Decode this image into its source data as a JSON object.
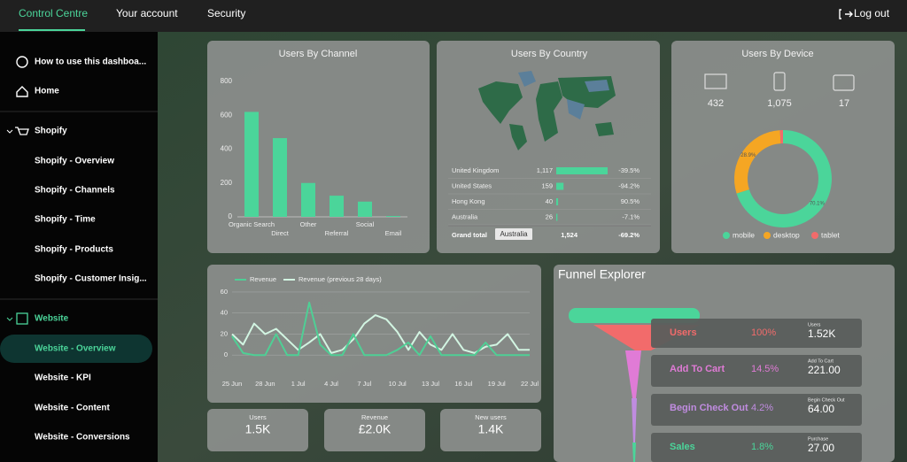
{
  "nav": {
    "tabs": [
      "Control Centre",
      "Your account",
      "Security"
    ],
    "logout": "Log out"
  },
  "sidebar": {
    "items": [
      "How to use this dashboa...",
      "Home",
      "Shopify",
      "Shopify - Overview",
      "Shopify - Channels",
      "Shopify - Time",
      "Shopify - Products",
      "Shopify - Customer Insig...",
      "Website",
      "Website - Overview",
      "Website - KPI",
      "Website - Content",
      "Website - Conversions"
    ]
  },
  "chart_data": [
    {
      "type": "bar",
      "title": "Users By Channel",
      "categories": [
        "Organic Search",
        "Direct",
        "Other",
        "Referral",
        "Social",
        "Email"
      ],
      "values": [
        620,
        465,
        200,
        125,
        90,
        5
      ],
      "color": "#4bd59a",
      "ylim": [
        0,
        800
      ],
      "yticks": [
        0,
        200,
        400,
        600,
        800
      ]
    },
    {
      "type": "pie",
      "title": "Users By Device",
      "categories": [
        "mobile",
        "desktop",
        "tablet"
      ],
      "values": [
        70.1,
        28.9,
        1.0
      ],
      "value_labels": [
        "70.1%",
        "28.9%",
        null
      ],
      "colors": [
        "#4bd59a",
        "#f5a623",
        "#f26b6b"
      ],
      "devices": [
        432,
        {
          "value": 1075,
          "label": "1,075"
        },
        17
      ]
    },
    {
      "type": "line",
      "categories": [
        "25 Jun",
        null,
        null,
        "28 Jun",
        null,
        null,
        "1 Jul",
        null,
        null,
        "4 Jul",
        null,
        null,
        "7 Jul",
        null,
        null,
        "10 Jul",
        null,
        null,
        "13 Jul",
        null,
        null,
        "16 Jul",
        null,
        null,
        "19 Jul",
        null,
        null,
        "22 Jul"
      ],
      "series": [
        {
          "name": "Revenue",
          "color": "#4fcf95",
          "values": [
            18,
            2,
            0,
            0,
            20,
            0,
            0,
            50,
            10,
            0,
            0,
            20,
            0,
            0,
            0,
            5,
            12,
            0,
            18,
            0,
            0,
            0,
            0,
            12,
            0,
            0,
            0,
            0
          ]
        },
        {
          "name": "Revenue (previous 28 days)",
          "color": "#d2f5e2",
          "values": [
            20,
            10,
            30,
            20,
            25,
            15,
            5,
            12,
            20,
            2,
            5,
            15,
            30,
            38,
            34,
            22,
            5,
            22,
            10,
            5,
            20,
            5,
            2,
            8,
            10,
            20,
            5,
            5
          ]
        }
      ],
      "ylim": [
        -20,
        65
      ],
      "yticks": [
        0,
        20,
        40,
        60
      ],
      "grid": true
    }
  ],
  "country_table": {
    "title": "Users By Country",
    "bar_color": "#4bd59a",
    "rows": [
      {
        "country": "United Kingdom",
        "users": {
          "value": 1117,
          "label": "1,117"
        },
        "change": "-39.5%"
      },
      {
        "country": "United States",
        "users": 159,
        "change": "-94.2%"
      },
      {
        "country": "Hong Kong",
        "users": 40,
        "change": "90.5%"
      },
      {
        "country": "Australia",
        "users": 26,
        "change": "-7.1%"
      }
    ],
    "total": {
      "label": "Grand total",
      "filter": "Australia",
      "users": {
        "value": 1524,
        "label": "1,524"
      },
      "change": "-69.2%"
    }
  },
  "scorecards": [
    {
      "label": "Users",
      "value": "1.5K"
    },
    {
      "label": "Revenue",
      "value": "£2.0K"
    },
    {
      "label": "New users",
      "value": "1.4K"
    }
  ],
  "funnel": {
    "title": "Funnel Explorer",
    "stages": [
      {
        "name": "Users",
        "rate": "100%",
        "label": "Users",
        "value": "1.52K",
        "color": "#f26b6b"
      },
      {
        "name": "Add To Cart",
        "rate": "14.5%",
        "label": "Add To Cart",
        "value": "221.00",
        "color": "#e07bd6"
      },
      {
        "name": "Begin Check Out",
        "rate": "4.2%",
        "label": "Begin Check Out",
        "value": "64.00",
        "color": "#c08ce0"
      },
      {
        "name": "Sales",
        "rate": "1.8%",
        "label": "Purchase",
        "value": "27.00",
        "color": "#4bd59a"
      }
    ]
  }
}
